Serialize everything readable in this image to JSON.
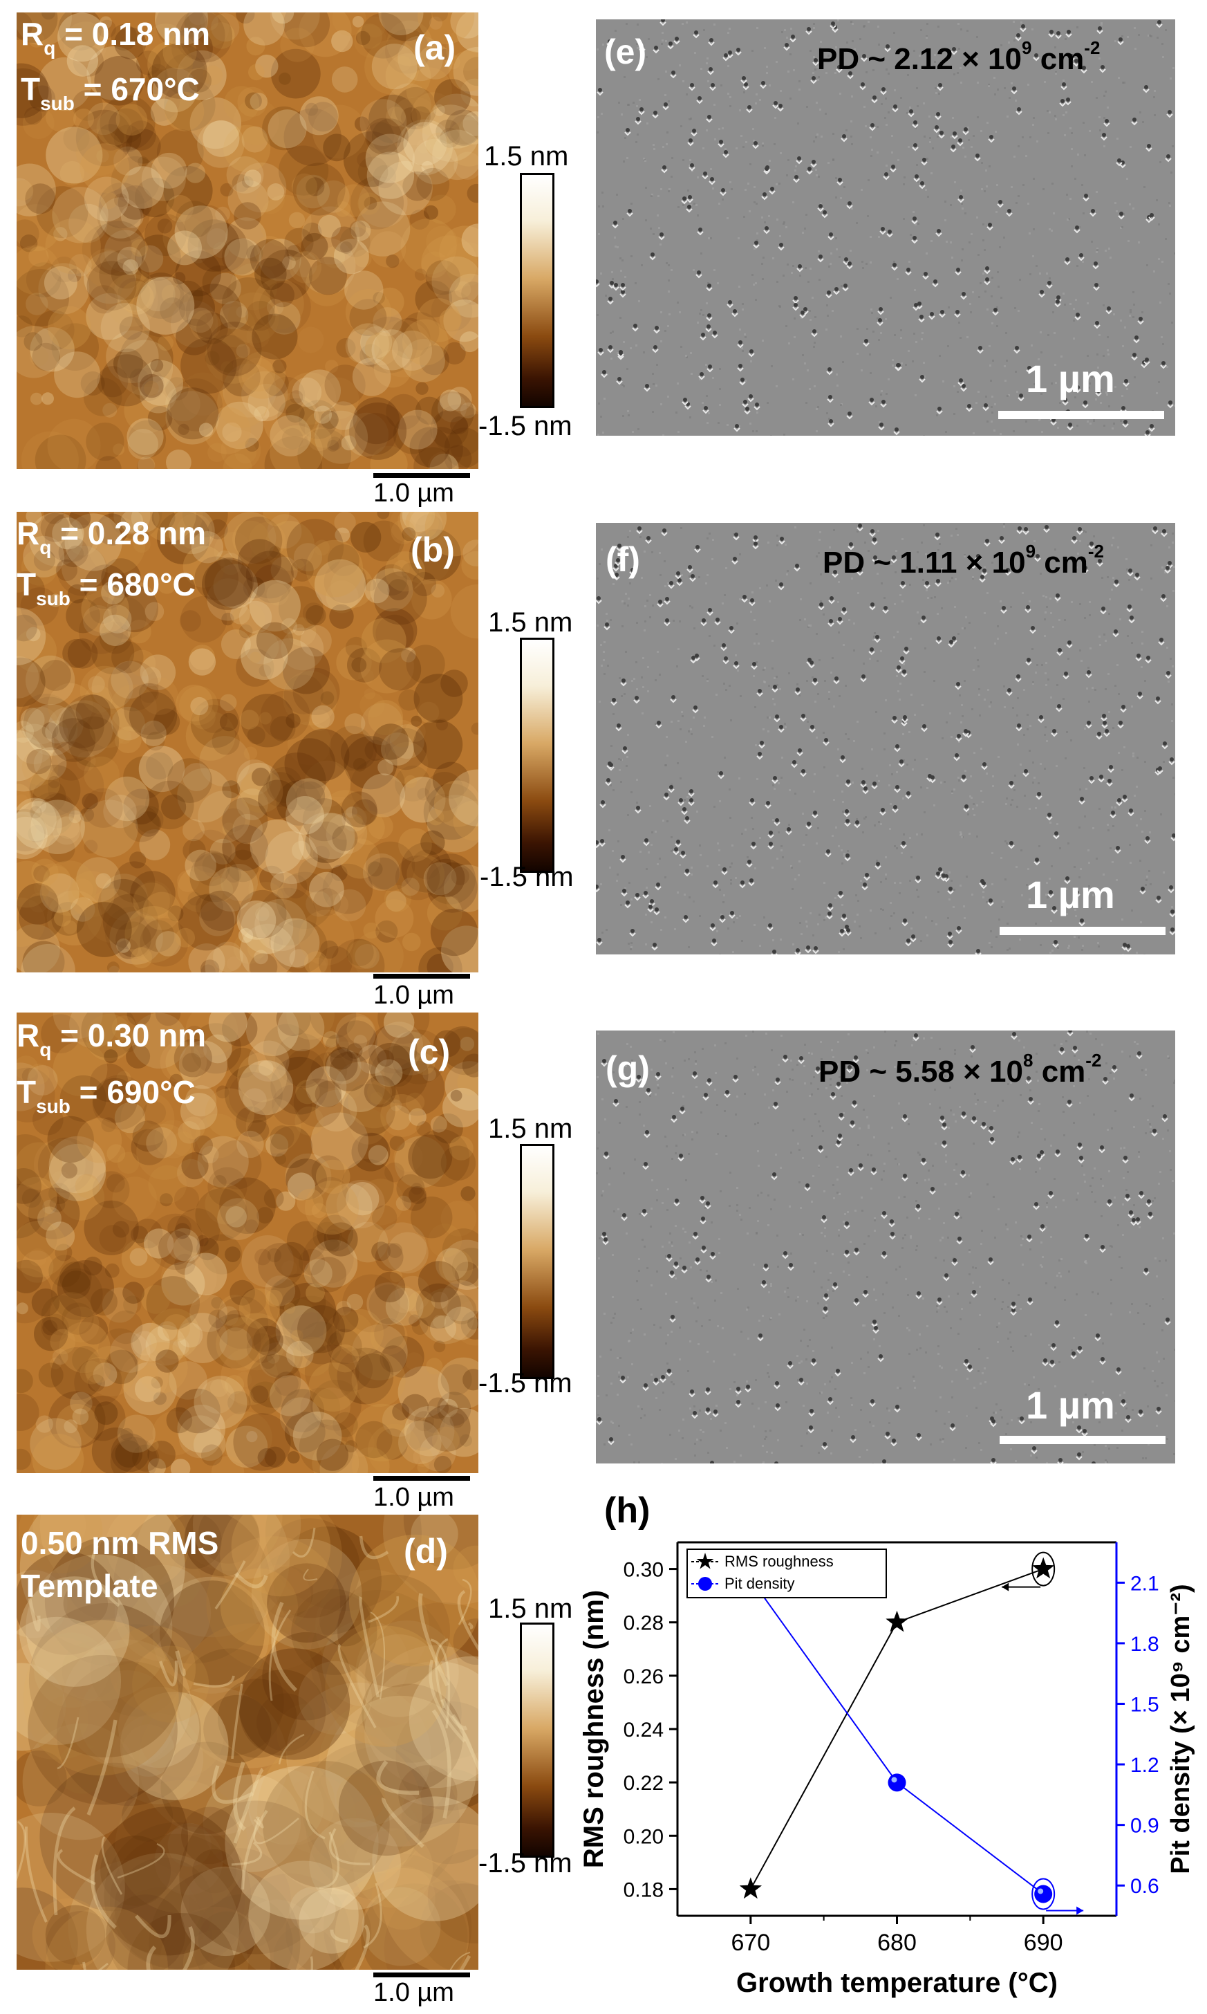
{
  "afm_panels": [
    {
      "tag": "(a)",
      "rq_prefix": "R",
      "rq_sub": "q",
      "rq_value": " = 0.18 nm",
      "t_prefix": "T",
      "t_sub": "sub",
      "t_value": " = 670°C",
      "scale": "1.0 µm",
      "cb_top": "1.5 nm",
      "cb_bottom": "-1.5 nm"
    },
    {
      "tag": "(b)",
      "rq_prefix": "R",
      "rq_sub": "q",
      "rq_value": " = 0.28 nm",
      "t_prefix": "T",
      "t_sub": "sub",
      "t_value": " = 680°C",
      "scale": "1.0 µm",
      "cb_top": "1.5 nm",
      "cb_bottom": "-1.5 nm"
    },
    {
      "tag": "(c)",
      "rq_prefix": "R",
      "rq_sub": "q",
      "rq_value": " = 0.30 nm",
      "t_prefix": "T",
      "t_sub": "sub",
      "t_value": " = 690°C",
      "scale": "1.0 µm",
      "cb_top": "1.5 nm",
      "cb_bottom": "-1.5 nm"
    },
    {
      "tag": "(d)",
      "line1": "0.50 nm RMS",
      "line2": "Template",
      "scale": "1.0 µm",
      "cb_top": "1.5 nm",
      "cb_bottom": "-1.5 nm"
    }
  ],
  "sem_panels": [
    {
      "tag": "(e)",
      "pd_prefix": "PD ~ 2.12 × 10",
      "pd_exp": "9",
      "pd_unit": " cm",
      "pd_unit_exp": "-2",
      "scale": "1 µm"
    },
    {
      "tag": "(f)",
      "pd_prefix": "PD ~ 1.11 × 10",
      "pd_exp": "9",
      "pd_unit": " cm",
      "pd_unit_exp": "-2",
      "scale": "1 µm"
    },
    {
      "tag": "(g)",
      "pd_prefix": "PD ~ 5.58 × 10",
      "pd_exp": "8",
      "pd_unit": " cm",
      "pd_unit_exp": "-2",
      "scale": "1 µm"
    }
  ],
  "chart_tag": "(h)",
  "chart_data": {
    "type": "line",
    "x": [
      670,
      680,
      690
    ],
    "xlabel": "Growth temperature (°C)",
    "xticks": [
      "670",
      "680",
      "690"
    ],
    "xlim": [
      665,
      695
    ],
    "ylabel_left": "RMS roughness (nm)",
    "ylim_left": [
      0.17,
      0.31
    ],
    "yticks_left": [
      "0.18",
      "0.20",
      "0.22",
      "0.24",
      "0.26",
      "0.28",
      "0.30"
    ],
    "ylabel_right": "Pit density (× 10⁹ cm⁻²)",
    "ylim_right": [
      0.45,
      2.3
    ],
    "yticks_right": [
      "0.6",
      "0.9",
      "1.2",
      "1.5",
      "1.8",
      "2.1"
    ],
    "legend_position": "top-left",
    "series": [
      {
        "name": "RMS roughness",
        "values": [
          0.18,
          0.28,
          0.3
        ],
        "axis": "left",
        "marker": "star",
        "color": "#000000"
      },
      {
        "name": "Pit density",
        "values": [
          2.12,
          1.11,
          0.558
        ],
        "axis": "right",
        "marker": "circle",
        "color": "#0000ff"
      }
    ]
  },
  "colors": {
    "afm_dark": "#5a2c06",
    "afm_mid": "#b8762e",
    "afm_light": "#f3dfb0",
    "sem_gray": "#8e8e8e",
    "pit_blue": "#0000ff"
  }
}
